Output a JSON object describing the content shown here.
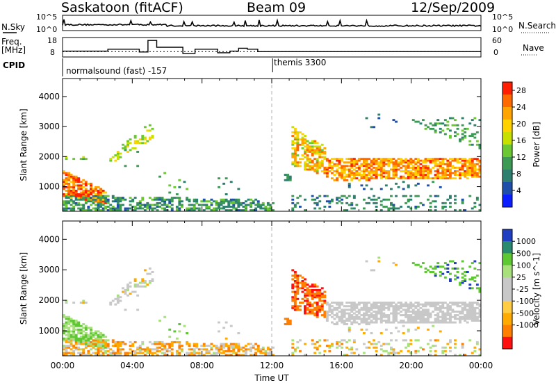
{
  "header": {
    "station": "Saskatoon (fitACF)",
    "beam": "Beam 09",
    "date": "12/Sep/2009"
  },
  "panel_labels": {
    "nsky": "N.Sky",
    "freq_line1": "Freq.",
    "freq_line2": "[MHz]",
    "cpid": "CPID",
    "nsearch": "N.Search",
    "nave": "Nave"
  },
  "noise_axis": {
    "left_top": "10^5",
    "left_bottom": "10^0",
    "right_top": "10^5",
    "right_bottom": "10^0"
  },
  "freq_axis": {
    "left_top": "18",
    "left_bottom": "8",
    "right_top": "60",
    "right_bottom": "0"
  },
  "cpid_labels": {
    "first": "normalsound (fast) -157",
    "second": "themis 3300"
  },
  "colors": {
    "power": [
      "#0a1eff",
      "#1f4fa8",
      "#2f7f6f",
      "#3c9a55",
      "#6cc832",
      "#c8e000",
      "#ffd200",
      "#ffa400",
      "#ff6a00",
      "#ff1e00"
    ],
    "velocity": [
      "#ff1010",
      "#ff7f00",
      "#ffaa00",
      "#ffcc44",
      "#c8c8c8",
      "#c8c8c8",
      "#a8e07c",
      "#5ec832",
      "#2a8a70",
      "#1f3fc0"
    ],
    "dash": "#b0b0b0"
  },
  "chart_data": [
    {
      "type": "heatmap",
      "name": "power-panel",
      "xlabel": "",
      "ylabel": "Slant Range [km]",
      "xlim": [
        0,
        24
      ],
      "ylim": [
        180,
        4600
      ],
      "yticks": [
        "1000",
        "2000",
        "3000",
        "4000"
      ],
      "colorbar": {
        "label": "Power [dB]",
        "ticks": [
          "4",
          "8",
          "12",
          "16",
          "20",
          "24",
          "28"
        ],
        "range": [
          0,
          30
        ]
      },
      "features": [
        {
          "region": "near-range band",
          "t": [
            0.0,
            12.0
          ],
          "range_km": [
            180,
            700
          ],
          "dominant_value": "8-14 dB"
        },
        {
          "region": "early echo",
          "t": [
            0.0,
            2.5
          ],
          "range_km": [
            600,
            1500
          ],
          "dominant_value": "24-30 dB"
        },
        {
          "region": "arc",
          "t": [
            2.6,
            5.2
          ],
          "range_km": [
            1700,
            3200
          ],
          "dominant_value": "12-20 dB"
        },
        {
          "region": "main echo band",
          "t": [
            13.0,
            24.0
          ],
          "range_km": [
            1200,
            3000
          ],
          "dominant_value": "16-28 dB"
        }
      ]
    },
    {
      "type": "heatmap",
      "name": "velocity-panel",
      "xlabel": "Time UT",
      "ylabel": "Slant Range [km]",
      "xlim": [
        0,
        24
      ],
      "ylim": [
        180,
        4600
      ],
      "xticks": [
        "00:00",
        "04:00",
        "08:00",
        "12:00",
        "16:00",
        "20:00",
        "00:00"
      ],
      "yticks": [
        "1000",
        "2000",
        "3000",
        "4000"
      ],
      "colorbar": {
        "label": "Velocity [m s^-1]",
        "ticks": [
          "1000",
          "500",
          "100",
          "25",
          "-25",
          "-100",
          "-500",
          "-1000"
        ]
      },
      "features": [
        {
          "region": "near-range band",
          "t": [
            0.0,
            12.0
          ],
          "range_km": [
            180,
            700
          ],
          "dominant_value": "-100 m/s"
        },
        {
          "region": "early echo",
          "t": [
            0.0,
            4.0
          ],
          "range_km": [
            500,
            1600
          ],
          "dominant_value": "100 m/s"
        },
        {
          "region": "onset patch",
          "t": [
            13.0,
            14.5
          ],
          "range_km": [
            1700,
            2400
          ],
          "dominant_value": "-500 m/s"
        },
        {
          "region": "main echo band",
          "t": [
            13.0,
            24.0
          ],
          "range_km": [
            1000,
            3000
          ],
          "dominant_value": "0 m/s"
        }
      ]
    },
    {
      "type": "line",
      "name": "operating-frequency",
      "x": [
        0.0,
        2.6,
        2.6,
        4.4,
        4.4,
        4.9,
        4.9,
        5.4,
        5.4,
        6.9,
        6.9,
        7.6,
        7.6,
        8.9,
        8.9,
        9.6,
        9.6,
        10.1,
        10.1,
        10.6,
        10.6,
        11.2,
        11.2,
        24.0
      ],
      "y": [
        10.6,
        10.6,
        11.8,
        11.8,
        10.1,
        10.1,
        17.2,
        17.2,
        13.0,
        13.0,
        9.2,
        9.2,
        11.8,
        11.8,
        9.6,
        9.6,
        10.6,
        10.6,
        12.4,
        12.4,
        11.8,
        11.8,
        10.3,
        10.3
      ]
    }
  ]
}
